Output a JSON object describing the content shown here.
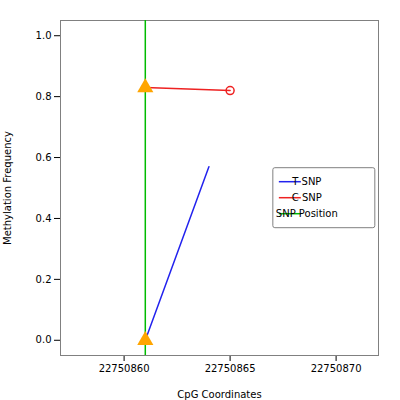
{
  "chart_data": {
    "type": "line",
    "xlabel": "CpG Coordinates",
    "ylabel": "Methylation Frequency",
    "xlim": [
      22750857,
      22750872
    ],
    "ylim": [
      -0.05,
      1.05
    ],
    "xticks": [
      22750860,
      22750865,
      22750870
    ],
    "yticks": [
      {
        "value": 0.0,
        "label": "0.0"
      },
      0.2,
      0.4,
      0.6,
      0.8,
      {
        "value": 1.0,
        "label": "1.0"
      }
    ],
    "legend": "lower right",
    "series": [
      {
        "name": "T SNP",
        "type": "line",
        "color": "#2222EE",
        "x": [
          22750861,
          22750864
        ],
        "values": [
          0.0,
          0.57
        ]
      },
      {
        "name": "C SNP",
        "type": "line",
        "color": "#EE2222",
        "x": [
          22750861,
          22750865
        ],
        "values": [
          0.83,
          0.82
        ]
      },
      {
        "name": "SNP Position",
        "type": "vline",
        "color": "#00BB00",
        "x": [
          22750861
        ]
      },
      {
        "type": "scatter",
        "marker": "circle_open",
        "color": "#EE2222",
        "x": [
          22750865
        ],
        "values": [
          0.82
        ]
      },
      {
        "type": "scatter",
        "marker": "triangle",
        "color": "#FFA500",
        "x": [
          22750861,
          22750861
        ],
        "values": [
          0.83,
          0.0
        ]
      }
    ]
  }
}
